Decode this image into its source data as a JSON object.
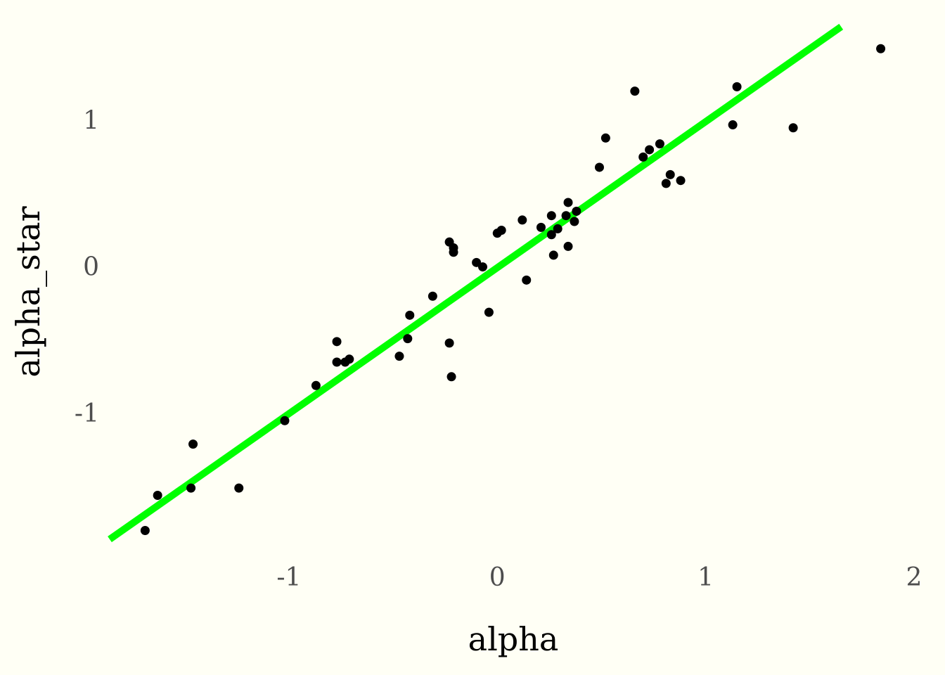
{
  "colors": {
    "background": "#fffff5",
    "point": "#000000",
    "fit_line": "#00ff00",
    "tick_text": "#4d4d4d",
    "axis_title_text": "#000000"
  },
  "chart_data": {
    "type": "scatter",
    "title": "",
    "xlabel": "alpha",
    "ylabel": "alpha_star",
    "xlim": [
      -1.86,
      2.0
    ],
    "ylim": [
      -1.86,
      1.64
    ],
    "x_ticks": [
      {
        "value": -1,
        "label": "-1"
      },
      {
        "value": 0,
        "label": "0"
      },
      {
        "value": 1,
        "label": "1"
      },
      {
        "value": 2,
        "label": "2"
      }
    ],
    "y_ticks": [
      {
        "value": -1,
        "label": "-1"
      },
      {
        "value": 0,
        "label": "0"
      },
      {
        "value": 1,
        "label": "1"
      }
    ],
    "grid": false,
    "legend": "none",
    "fit_line": {
      "x0": -1.86,
      "y0": -1.86,
      "x1": 1.65,
      "y1": 1.64
    },
    "points": [
      {
        "x": -1.69,
        "y": -1.8
      },
      {
        "x": -1.63,
        "y": -1.56
      },
      {
        "x": -1.47,
        "y": -1.51
      },
      {
        "x": -1.46,
        "y": -1.21
      },
      {
        "x": -1.24,
        "y": -1.51
      },
      {
        "x": -1.02,
        "y": -1.05
      },
      {
        "x": -0.87,
        "y": -0.81
      },
      {
        "x": -0.77,
        "y": -0.51
      },
      {
        "x": -0.77,
        "y": -0.65
      },
      {
        "x": -0.73,
        "y": -0.65
      },
      {
        "x": -0.71,
        "y": -0.63
      },
      {
        "x": -0.47,
        "y": -0.61
      },
      {
        "x": -0.43,
        "y": -0.49
      },
      {
        "x": -0.42,
        "y": -0.33
      },
      {
        "x": -0.31,
        "y": -0.2
      },
      {
        "x": -0.23,
        "y": -0.52
      },
      {
        "x": -0.22,
        "y": -0.75
      },
      {
        "x": -0.23,
        "y": 0.17
      },
      {
        "x": -0.21,
        "y": 0.13
      },
      {
        "x": -0.21,
        "y": 0.1
      },
      {
        "x": -0.1,
        "y": 0.03
      },
      {
        "x": -0.07,
        "y": 0.0
      },
      {
        "x": -0.04,
        "y": -0.31
      },
      {
        "x": 0.0,
        "y": 0.23
      },
      {
        "x": 0.02,
        "y": 0.25
      },
      {
        "x": 0.12,
        "y": 0.32
      },
      {
        "x": 0.14,
        "y": -0.09
      },
      {
        "x": 0.21,
        "y": 0.27
      },
      {
        "x": 0.26,
        "y": 0.35
      },
      {
        "x": 0.26,
        "y": 0.22
      },
      {
        "x": 0.27,
        "y": 0.08
      },
      {
        "x": 0.29,
        "y": 0.26
      },
      {
        "x": 0.33,
        "y": 0.35
      },
      {
        "x": 0.34,
        "y": 0.44
      },
      {
        "x": 0.34,
        "y": 0.14
      },
      {
        "x": 0.37,
        "y": 0.31
      },
      {
        "x": 0.38,
        "y": 0.38
      },
      {
        "x": 0.49,
        "y": 0.68
      },
      {
        "x": 0.52,
        "y": 0.88
      },
      {
        "x": 0.66,
        "y": 1.2
      },
      {
        "x": 0.7,
        "y": 0.75
      },
      {
        "x": 0.73,
        "y": 0.8
      },
      {
        "x": 0.78,
        "y": 0.84
      },
      {
        "x": 0.81,
        "y": 0.57
      },
      {
        "x": 0.83,
        "y": 0.63
      },
      {
        "x": 0.88,
        "y": 0.59
      },
      {
        "x": 1.13,
        "y": 0.97
      },
      {
        "x": 1.15,
        "y": 1.23
      },
      {
        "x": 1.42,
        "y": 0.95
      },
      {
        "x": 1.84,
        "y": 1.49
      }
    ]
  }
}
